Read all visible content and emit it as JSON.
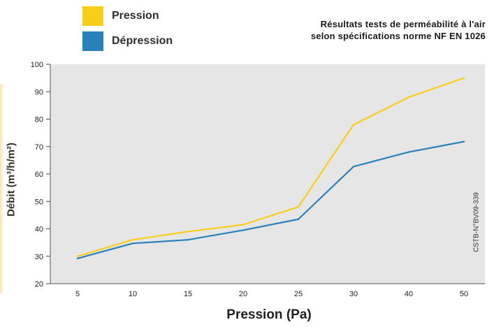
{
  "legend": {
    "items": [
      {
        "label": "Pression",
        "color": "#F9CE1B"
      },
      {
        "label": "Dépression",
        "color": "#2A80B8"
      }
    ]
  },
  "chart_data": {
    "type": "line",
    "title_lines": [
      "Résultats tests de perméabilité à l'air",
      "selon spécifications norme NF EN 1026"
    ],
    "xlabel": "Pression (Pa)",
    "ylabel": "Débit (m³/h/m²)",
    "categories": [
      "5",
      "10",
      "15",
      "20",
      "25",
      "30",
      "40",
      "50"
    ],
    "ylim": [
      20,
      100
    ],
    "yticks": [
      20,
      30,
      40,
      50,
      60,
      70,
      80,
      90,
      100
    ],
    "grid": false,
    "legend_position": "top-left",
    "annotation": "CSTB-N°BV09-339",
    "series": [
      {
        "name": "Pression",
        "color": "#F9CE1B",
        "values": [
          30,
          36,
          39,
          41.5,
          48,
          78,
          88,
          95
        ]
      },
      {
        "name": "Dépression",
        "color": "#2A80B8",
        "values": [
          29.2,
          34.7,
          36,
          39.5,
          43.5,
          62.7,
          68,
          71.8
        ]
      }
    ]
  }
}
